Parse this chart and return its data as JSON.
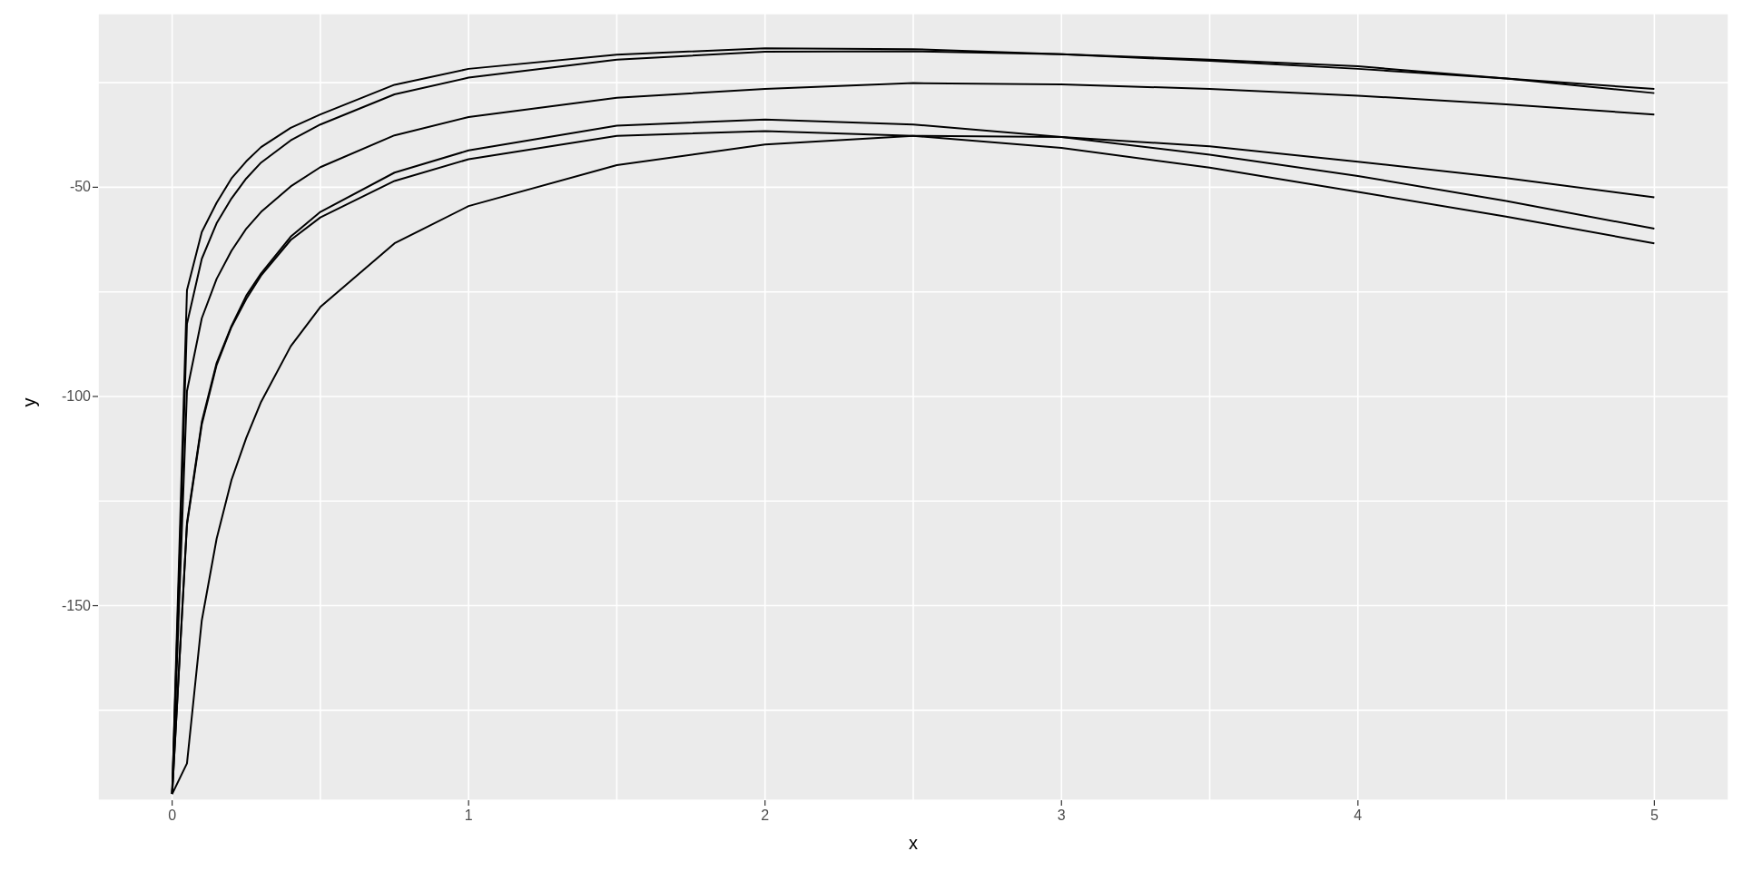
{
  "chart_data": {
    "type": "line",
    "xlabel": "x",
    "ylabel": "y",
    "x": [
      0,
      0.05,
      0.1,
      0.15,
      0.2,
      0.25,
      0.3,
      0.4,
      0.5,
      0.75,
      1,
      1.5,
      2,
      2.5,
      3,
      3.5,
      4,
      4.5,
      5
    ],
    "series": [
      {
        "color": "#000000",
        "values": [
          -195,
          -74.6,
          -60.7,
          -53.7,
          -47.9,
          -43.8,
          -40.4,
          -35.8,
          -32.6,
          -25.5,
          -21.7,
          -18.3,
          -16.8,
          -17,
          -18.2,
          -19.8,
          -21.7,
          -24,
          -26.5
        ]
      },
      {
        "color": "#000000",
        "values": [
          -195,
          -82.6,
          -67.1,
          -58.6,
          -52.7,
          -47.9,
          -44.1,
          -38.8,
          -35,
          -27.8,
          -23.8,
          -19.5,
          -17.6,
          -17.5,
          -18.2,
          -19.5,
          -21.1,
          -24,
          -27.5
        ]
      },
      {
        "color": "#000000",
        "values": [
          -195,
          -98.7,
          -81.3,
          -71.9,
          -65.2,
          -59.9,
          -55.9,
          -49.8,
          -45.2,
          -37.6,
          -33.2,
          -28.6,
          -26.5,
          -25.1,
          -25.4,
          -26.5,
          -28.1,
          -30.2,
          -32.6
        ]
      },
      {
        "color": "#000000",
        "values": [
          -195,
          -130.2,
          -106.1,
          -92,
          -83.2,
          -75.9,
          -70.6,
          -61.8,
          -55.9,
          -46.5,
          -41.2,
          -35.3,
          -33.8,
          -35,
          -38,
          -42.2,
          -47.3,
          -53.3,
          -59.9
        ]
      },
      {
        "color": "#000000",
        "values": [
          -195,
          -130.7,
          -106.7,
          -92.5,
          -83.4,
          -76.7,
          -71.1,
          -62.6,
          -57.2,
          -48.5,
          -43.3,
          -37.7,
          -36.6,
          -37.7,
          -40.6,
          -45.3,
          -51.1,
          -57,
          -63.4
        ]
      },
      {
        "color": "#000000",
        "values": [
          -195,
          -187.7,
          -153.5,
          -134,
          -120,
          -109.9,
          -101.3,
          -88,
          -78.6,
          -63.4,
          -54.5,
          -44.7,
          -39.8,
          -37.7,
          -38,
          -40.2,
          -43.9,
          -47.8,
          -52.4
        ]
      }
    ],
    "xlim": [
      -0.25,
      5.25
    ],
    "ylim": [
      -196.5,
      -8.5
    ],
    "xticks": [
      0,
      {
        "value": 0.5,
        "label": null
      },
      1,
      {
        "value": 1.5,
        "label": null
      },
      2,
      {
        "value": 2.5,
        "label": null
      },
      3,
      {
        "value": 3.5,
        "label": null
      },
      4,
      {
        "value": 4.5,
        "label": null
      },
      5
    ],
    "yticks": [
      {
        "value": -175,
        "label": null
      },
      -150,
      {
        "value": -125,
        "label": null
      },
      -100,
      {
        "value": -75,
        "label": null
      },
      -50,
      {
        "value": -25,
        "label": null
      }
    ],
    "grid": true,
    "marker": "none",
    "line_style": "solid"
  }
}
